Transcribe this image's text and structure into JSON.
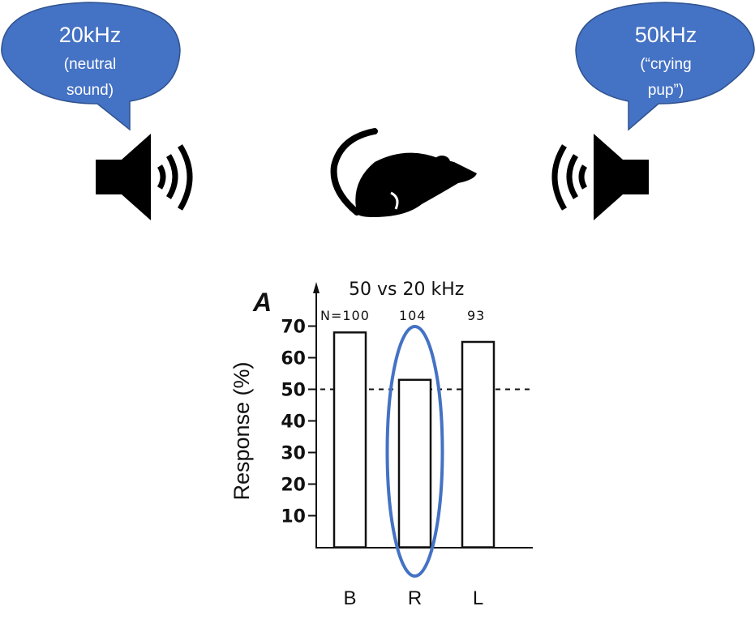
{
  "bubbles": [
    {
      "title": "20kHz",
      "line1": "(neutral",
      "line2": "sound)",
      "color": "#4472C4"
    },
    {
      "title": "50kHz",
      "line1": "(“crying",
      "line2": "pup”)",
      "color": "#4472C4"
    }
  ],
  "icons": [
    "speaker-left-icon",
    "mouse-icon",
    "speaker-right-icon"
  ],
  "chart_data": {
    "type": "bar",
    "panel_label": "A",
    "title": "50 vs 20 kHz",
    "categories": [
      "B",
      "R",
      "L"
    ],
    "values": [
      68,
      53,
      65
    ],
    "n_labels": [
      "N=100",
      "104",
      "93"
    ],
    "ylabel": "Response (%)",
    "yticks": [
      10,
      20,
      30,
      40,
      50,
      60,
      70
    ],
    "ylim": [
      0,
      70
    ],
    "reference_line": 50,
    "highlight_category": "R",
    "highlight_color": "#4472C4"
  }
}
